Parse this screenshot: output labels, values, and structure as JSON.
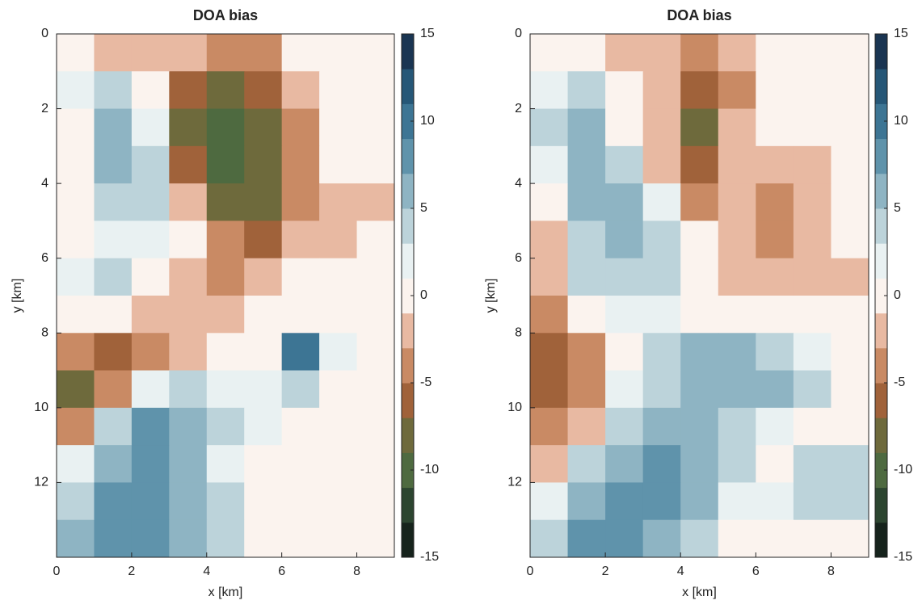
{
  "chart_data": [
    {
      "type": "heatmap",
      "title": "DOA bias",
      "xlabel": "x [km]",
      "ylabel": "y [km]",
      "xlim": [
        0,
        9
      ],
      "ylim": [
        0,
        14
      ],
      "y_reversed": true,
      "xticks": [
        0,
        2,
        4,
        6,
        8
      ],
      "yticks": [
        0,
        2,
        4,
        6,
        8,
        10,
        12
      ],
      "zlim": [
        -15,
        15
      ],
      "zticks": [
        -15,
        -10,
        -5,
        0,
        5,
        10,
        15
      ],
      "colorscale": [
        "#16231c",
        "#2c4530",
        "#4e6a40",
        "#6e6a3c",
        "#a0623a",
        "#c98a64",
        "#e8b9a2",
        "#fbf3ee",
        "#e9f1f2",
        "#bcd3da",
        "#8eb4c3",
        "#5f93ab",
        "#3d7594",
        "#265777",
        "#1a3552"
      ],
      "z": [
        [
          0,
          -2,
          -2,
          -3,
          -5,
          -4,
          0,
          0,
          0
        ],
        [
          2,
          4,
          -1,
          -6,
          -8,
          -6,
          -2,
          0,
          0
        ],
        [
          0,
          5,
          2,
          -8,
          -10,
          -8,
          -4,
          0,
          0
        ],
        [
          0,
          6,
          3,
          -6,
          -10,
          -9,
          -5,
          0,
          0
        ],
        [
          0,
          4,
          3,
          -2,
          -8,
          -8,
          -5,
          -3,
          -2
        ],
        [
          0,
          2,
          2,
          0,
          -4,
          -6,
          -3,
          -2,
          0
        ],
        [
          2,
          3,
          0,
          -2,
          -4,
          -3,
          -1,
          0,
          0
        ],
        [
          0,
          -1,
          -2,
          -3,
          -2,
          0,
          0,
          -1,
          0
        ],
        [
          -5,
          -6,
          -4,
          -3,
          -1,
          0,
          10,
          2,
          0
        ],
        [
          -8,
          -5,
          2,
          4,
          2,
          1,
          3,
          0,
          0
        ],
        [
          -5,
          4,
          8,
          6,
          3,
          1,
          0,
          0,
          0
        ],
        [
          2,
          6,
          8,
          5,
          2,
          0,
          0,
          0,
          0
        ],
        [
          4,
          7,
          8,
          6,
          4,
          0,
          0,
          0,
          0
        ],
        [
          6,
          8,
          8,
          6,
          4,
          0,
          0,
          0,
          0
        ]
      ]
    },
    {
      "type": "heatmap",
      "title": "DOA bias",
      "xlabel": "x [km]",
      "ylabel": "y [km]",
      "xlim": [
        0,
        9
      ],
      "ylim": [
        0,
        14
      ],
      "y_reversed": true,
      "xticks": [
        0,
        2,
        4,
        6,
        8
      ],
      "yticks": [
        0,
        2,
        4,
        6,
        8,
        10,
        12
      ],
      "zlim": [
        -15,
        15
      ],
      "zticks": [
        -15,
        -10,
        -5,
        0,
        5,
        10,
        15
      ],
      "colorscale": [
        "#16231c",
        "#2c4530",
        "#4e6a40",
        "#6e6a3c",
        "#a0623a",
        "#c98a64",
        "#e8b9a2",
        "#fbf3ee",
        "#e9f1f2",
        "#bcd3da",
        "#8eb4c3",
        "#5f93ab",
        "#3d7594",
        "#265777",
        "#1a3552"
      ],
      "z": [
        [
          0,
          -1,
          -2,
          -3,
          -4,
          -3,
          0,
          0,
          0
        ],
        [
          2,
          3,
          0,
          -2,
          -6,
          -4,
          0,
          0,
          0
        ],
        [
          3,
          5,
          0,
          -3,
          -8,
          -3,
          -1,
          0,
          0
        ],
        [
          2,
          6,
          4,
          -2,
          -6,
          -2,
          -3,
          -2,
          0
        ],
        [
          0,
          6,
          6,
          2,
          -4,
          -3,
          -4,
          -3,
          -1
        ],
        [
          -2,
          4,
          5,
          3,
          0,
          -3,
          -4,
          -3,
          0
        ],
        [
          -3,
          3,
          4,
          3,
          0,
          -2,
          -3,
          -3,
          -2
        ],
        [
          -5,
          0,
          2,
          2,
          0,
          0,
          0,
          0,
          0
        ],
        [
          -6,
          -5,
          0,
          3,
          5,
          6,
          4,
          2,
          0
        ],
        [
          -6,
          -5,
          2,
          4,
          6,
          6,
          5,
          3,
          0
        ],
        [
          -4,
          -2,
          4,
          6,
          6,
          4,
          2,
          0,
          0
        ],
        [
          -2,
          3,
          6,
          8,
          6,
          3,
          0,
          3,
          4
        ],
        [
          2,
          5,
          8,
          8,
          5,
          2,
          2,
          4,
          3
        ],
        [
          4,
          8,
          8,
          6,
          3,
          0,
          0,
          0,
          0
        ]
      ]
    }
  ]
}
